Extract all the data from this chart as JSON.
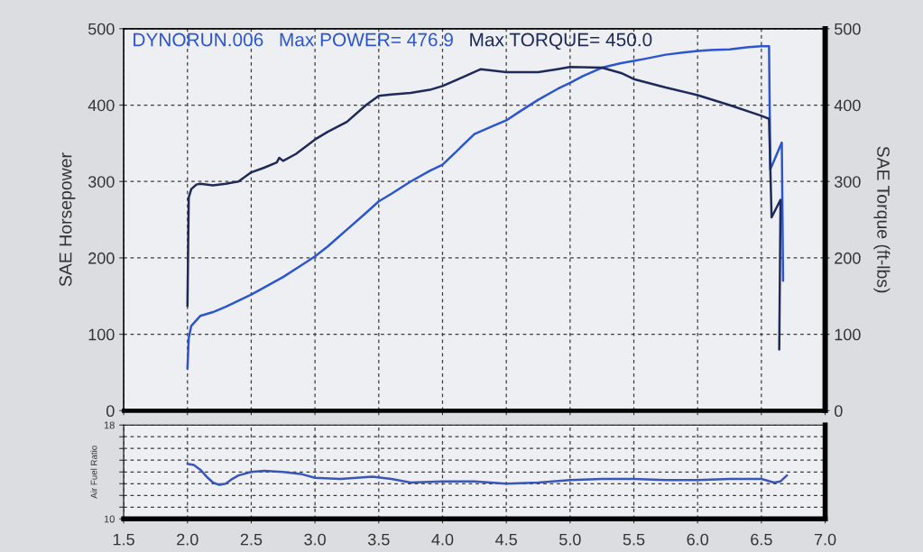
{
  "chart_data": [
    {
      "type": "line",
      "title": "DYNORUN.006",
      "annotations": [
        "Max POWER= 476.9",
        "Max TORQUE= 450.0"
      ],
      "ylabel": "SAE Horsepower",
      "y2label": "SAE Torque (ft-lbs)",
      "tick_labels": "y",
      "grid": true,
      "xlim": [
        1.5,
        7
      ],
      "xticks": [
        {
          "value": 1.5,
          "label": null
        },
        {
          "value": 2,
          "label": null
        },
        {
          "value": 2.5,
          "label": null
        },
        {
          "value": 3,
          "label": null
        },
        {
          "value": 3.5,
          "label": null
        },
        {
          "value": 4,
          "label": null
        },
        {
          "value": 4.5,
          "label": null
        },
        {
          "value": 5,
          "label": null
        },
        {
          "value": 5.5,
          "label": null
        },
        {
          "value": 6,
          "label": null
        },
        {
          "value": 6.5,
          "label": null
        },
        {
          "value": 7,
          "label": null
        }
      ],
      "ylim": [
        0,
        500
      ],
      "yticks": [
        0,
        100,
        200,
        300,
        400,
        500
      ],
      "y2lim": [
        0,
        500
      ],
      "y2ticks": [
        0,
        100,
        200,
        300,
        400,
        500
      ],
      "series": [
        {
          "color": "#2c56cf",
          "x": [
            2.0,
            2.01,
            2.03,
            2.1,
            2.2,
            2.3,
            2.4,
            2.5,
            2.6,
            2.75,
            2.9,
            3.0,
            3.1,
            3.25,
            3.4,
            3.5,
            3.6,
            3.75,
            3.9,
            4.0,
            4.1,
            4.25,
            4.4,
            4.5,
            4.6,
            4.75,
            4.9,
            5.0,
            5.1,
            5.25,
            5.4,
            5.5,
            5.6,
            5.75,
            5.9,
            6.0,
            6.1,
            6.25,
            6.4,
            6.5,
            6.56,
            6.57,
            6.66,
            6.67
          ],
          "values": [
            55,
            95,
            111,
            124,
            129,
            136,
            144,
            152,
            161,
            175,
            191,
            202,
            215,
            237,
            259,
            274,
            284,
            300,
            314,
            322,
            338,
            362,
            373,
            380,
            391,
            407,
            421,
            429,
            438,
            449,
            455,
            458,
            461,
            466,
            469,
            471,
            472,
            473,
            476,
            477,
            477,
            316,
            351,
            170
          ]
        },
        {
          "color": "#1f2a58",
          "axis": "y2",
          "x": [
            2.0,
            2.01,
            2.03,
            2.07,
            2.1,
            2.2,
            2.3,
            2.4,
            2.5,
            2.6,
            2.7,
            2.72,
            2.75,
            2.85,
            3.0,
            3.1,
            3.25,
            3.4,
            3.5,
            3.6,
            3.75,
            3.9,
            4.0,
            4.15,
            4.3,
            4.5,
            4.75,
            4.9,
            5.0,
            5.25,
            5.4,
            5.5,
            5.75,
            6.0,
            6.25,
            6.5,
            6.56,
            6.58,
            6.65,
            6.64
          ],
          "values": [
            137,
            279,
            290,
            296,
            297,
            295,
            297,
            300,
            312,
            318,
            325,
            331,
            327,
            336,
            355,
            365,
            378,
            400,
            412,
            414,
            416,
            420,
            425,
            436,
            447,
            443,
            443,
            447,
            450,
            449,
            442,
            434,
            423,
            413,
            400,
            386,
            382,
            253,
            276,
            80
          ]
        }
      ]
    },
    {
      "type": "line",
      "ylabel": "Air Fuel Ratio",
      "grid": true,
      "xlim": [
        1.5,
        7
      ],
      "xticks": [
        1.5,
        {
          "value": 2,
          "label": "2.0"
        },
        2.5,
        {
          "value": 3,
          "label": "3.0"
        },
        3.5,
        {
          "value": 4,
          "label": "4.0"
        },
        4.5,
        {
          "value": 5,
          "label": "5.0"
        },
        5.5,
        {
          "value": 6,
          "label": "6.0"
        },
        6.5,
        {
          "value": 7,
          "label": "7.0"
        }
      ],
      "ylim": [
        10,
        18
      ],
      "yticks": [
        10,
        {
          "value": 11,
          "label": null
        },
        {
          "value": 12,
          "label": null
        },
        {
          "value": 13,
          "label": null
        },
        {
          "value": 14,
          "label": null
        },
        {
          "value": 15,
          "label": null
        },
        {
          "value": 16,
          "label": null
        },
        {
          "value": 17,
          "label": null
        },
        18
      ],
      "series": [
        {
          "color": "#3a56b8",
          "x": [
            2.0,
            2.05,
            2.1,
            2.15,
            2.2,
            2.25,
            2.3,
            2.35,
            2.4,
            2.5,
            2.6,
            2.75,
            2.9,
            3.0,
            3.2,
            3.45,
            3.6,
            3.75,
            4.0,
            4.25,
            4.5,
            4.75,
            5.0,
            5.25,
            5.5,
            5.75,
            6.0,
            6.25,
            6.5,
            6.6,
            6.65,
            6.7
          ],
          "values": [
            14.7,
            14.6,
            14.2,
            13.6,
            13.1,
            12.9,
            13.0,
            13.4,
            13.7,
            14.0,
            14.1,
            14.0,
            13.8,
            13.5,
            13.4,
            13.6,
            13.4,
            13.1,
            13.2,
            13.2,
            13.0,
            13.1,
            13.3,
            13.4,
            13.4,
            13.3,
            13.3,
            13.4,
            13.4,
            13.1,
            13.2,
            13.7
          ]
        }
      ]
    }
  ]
}
